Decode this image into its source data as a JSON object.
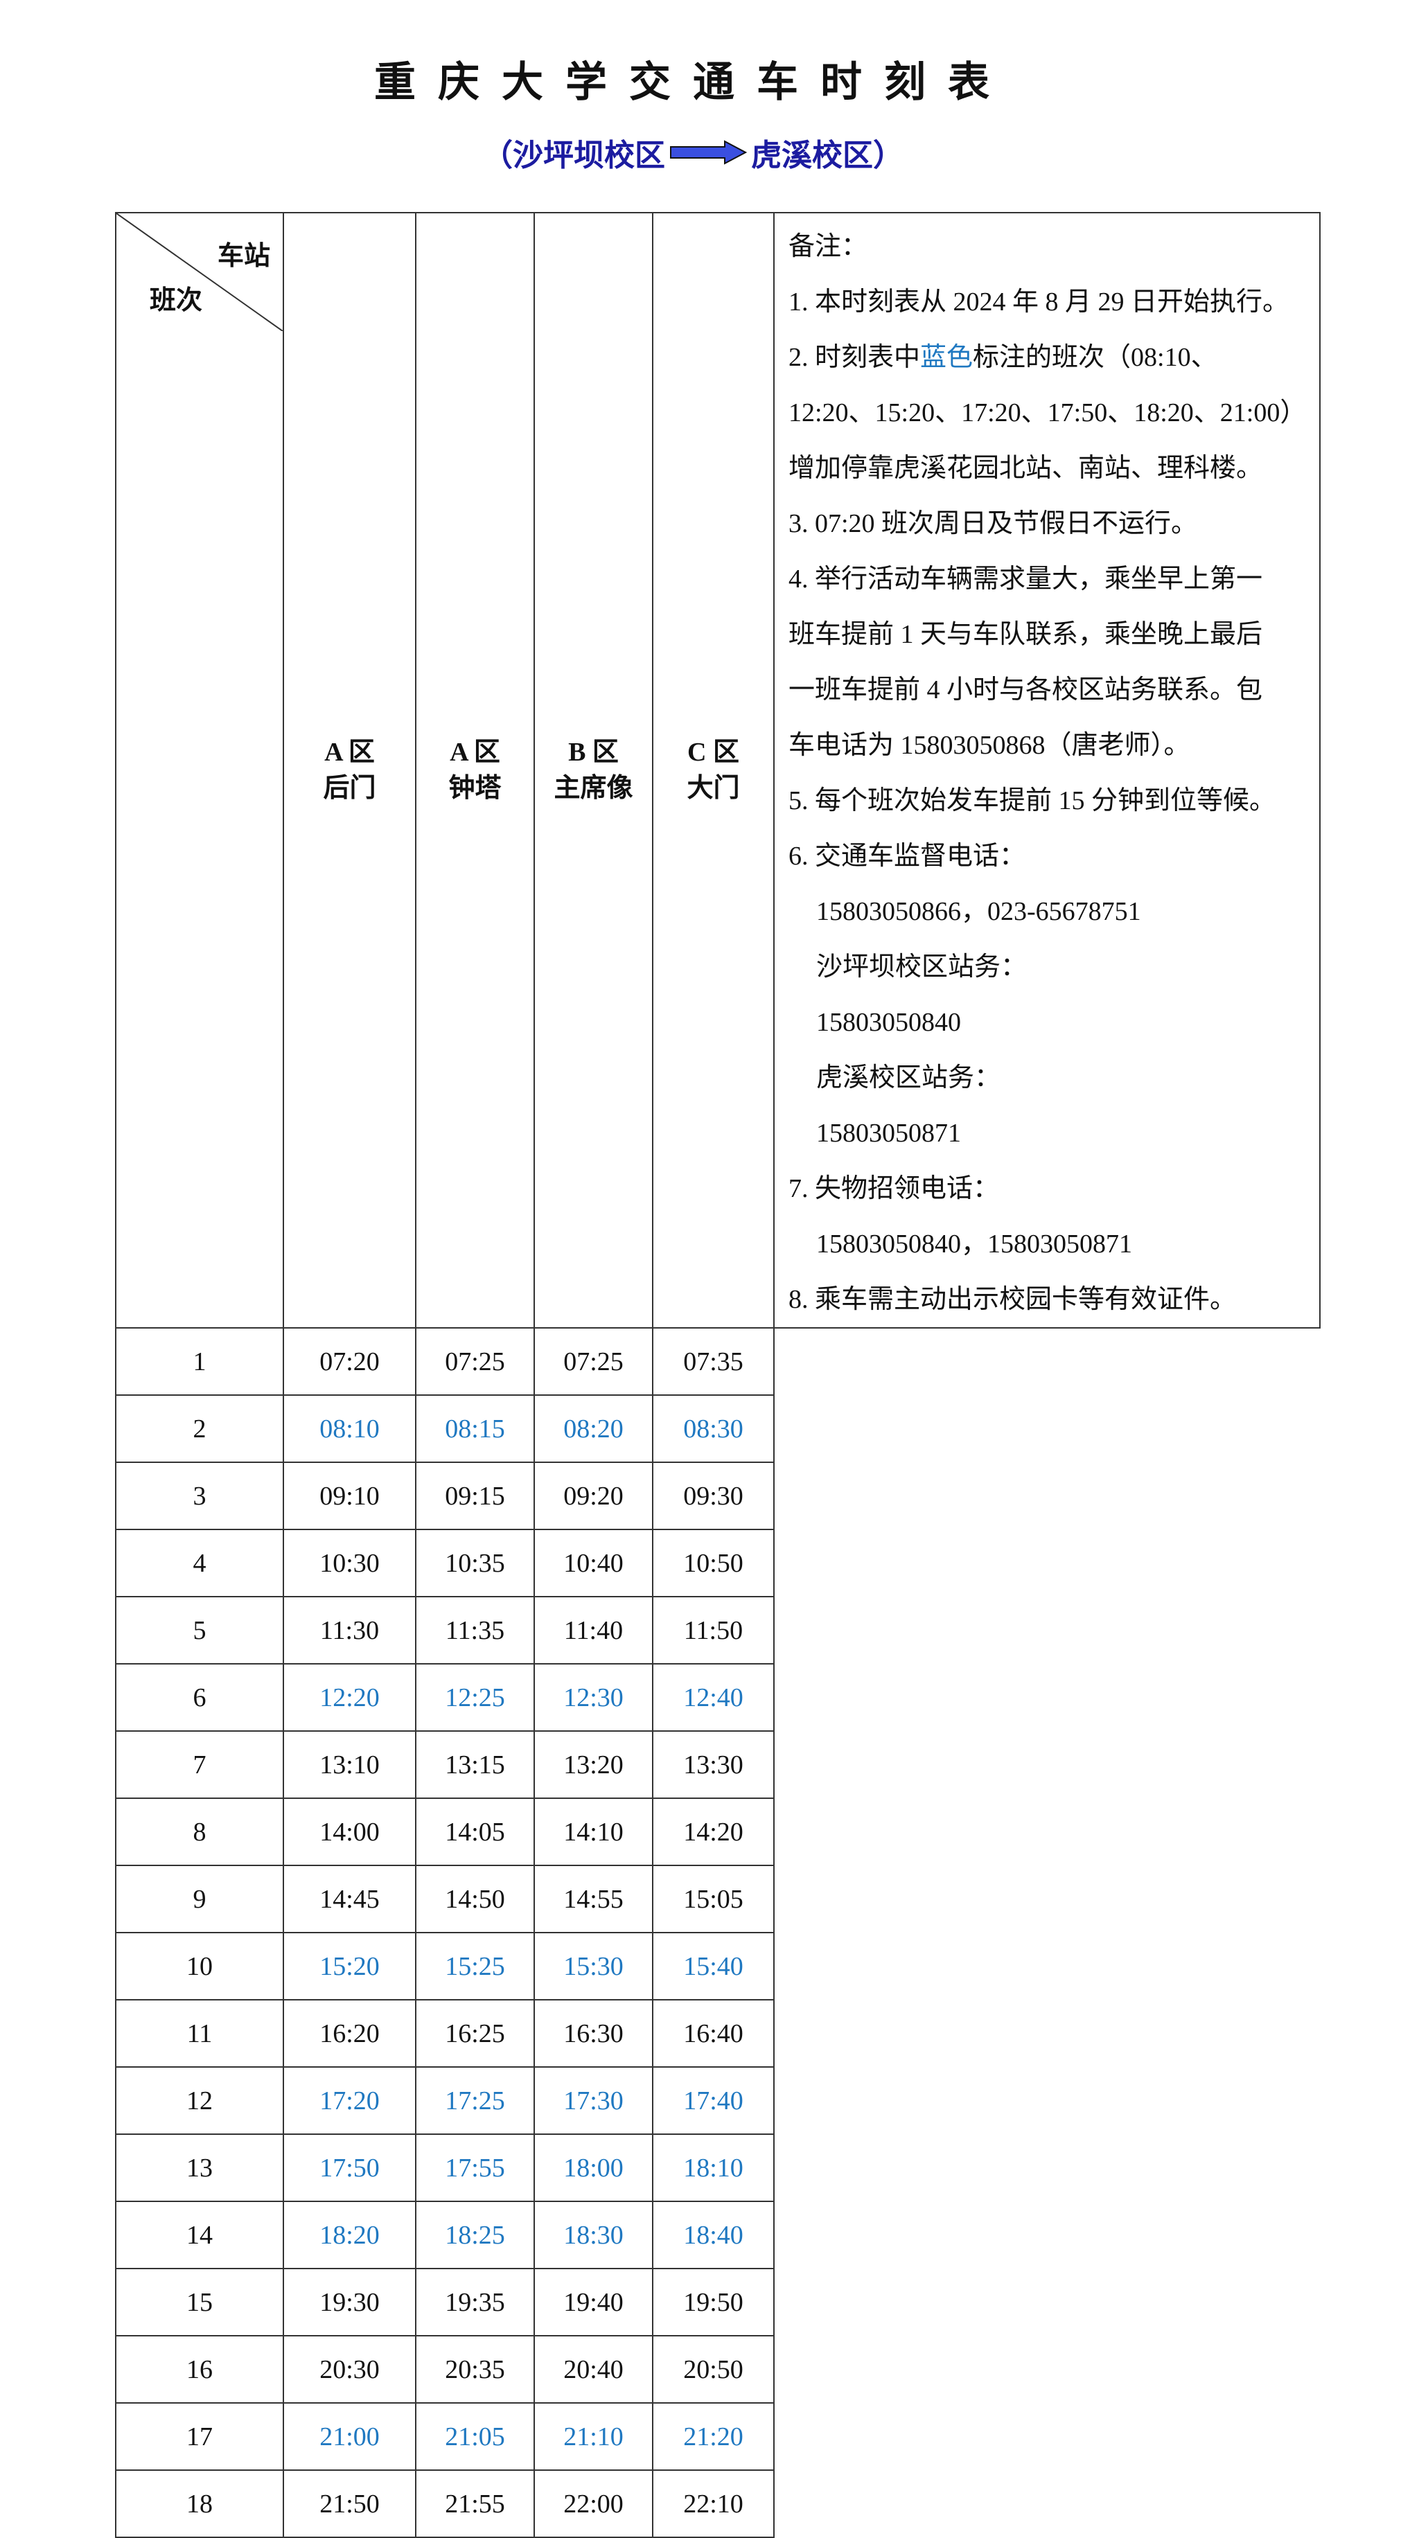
{
  "title": "重庆大学交通车时刻表",
  "subtitle": {
    "from": "（沙坪坝校区",
    "to": "虎溪校区）",
    "arrow_color": "#3a4fe0"
  },
  "table": {
    "corner_top": "车站",
    "corner_bottom": "班次",
    "columns": [
      {
        "line1": "A 区",
        "line2": "后门"
      },
      {
        "line1": "A 区",
        "line2": "钟塔"
      },
      {
        "line1": "B 区",
        "line2": "主席像"
      },
      {
        "line1": "C 区",
        "line2": "大门"
      }
    ],
    "highlight_color": "#1f78c1",
    "rows": [
      {
        "no": "1",
        "times": [
          "07:20",
          "07:25",
          "07:25",
          "07:35"
        ],
        "blue": false
      },
      {
        "no": "2",
        "times": [
          "08:10",
          "08:15",
          "08:20",
          "08:30"
        ],
        "blue": true
      },
      {
        "no": "3",
        "times": [
          "09:10",
          "09:15",
          "09:20",
          "09:30"
        ],
        "blue": false
      },
      {
        "no": "4",
        "times": [
          "10:30",
          "10:35",
          "10:40",
          "10:50"
        ],
        "blue": false
      },
      {
        "no": "5",
        "times": [
          "11:30",
          "11:35",
          "11:40",
          "11:50"
        ],
        "blue": false
      },
      {
        "no": "6",
        "times": [
          "12:20",
          "12:25",
          "12:30",
          "12:40"
        ],
        "blue": true
      },
      {
        "no": "7",
        "times": [
          "13:10",
          "13:15",
          "13:20",
          "13:30"
        ],
        "blue": false
      },
      {
        "no": "8",
        "times": [
          "14:00",
          "14:05",
          "14:10",
          "14:20"
        ],
        "blue": false
      },
      {
        "no": "9",
        "times": [
          "14:45",
          "14:50",
          "14:55",
          "15:05"
        ],
        "blue": false
      },
      {
        "no": "10",
        "times": [
          "15:20",
          "15:25",
          "15:30",
          "15:40"
        ],
        "blue": true
      },
      {
        "no": "11",
        "times": [
          "16:20",
          "16:25",
          "16:30",
          "16:40"
        ],
        "blue": false
      },
      {
        "no": "12",
        "times": [
          "17:20",
          "17:25",
          "17:30",
          "17:40"
        ],
        "blue": true
      },
      {
        "no": "13",
        "times": [
          "17:50",
          "17:55",
          "18:00",
          "18:10"
        ],
        "blue": true
      },
      {
        "no": "14",
        "times": [
          "18:20",
          "18:25",
          "18:30",
          "18:40"
        ],
        "blue": true
      },
      {
        "no": "15",
        "times": [
          "19:30",
          "19:35",
          "19:40",
          "19:50"
        ],
        "blue": false
      },
      {
        "no": "16",
        "times": [
          "20:30",
          "20:35",
          "20:40",
          "20:50"
        ],
        "blue": false
      },
      {
        "no": "17",
        "times": [
          "21:00",
          "21:05",
          "21:10",
          "21:20"
        ],
        "blue": true
      },
      {
        "no": "18",
        "times": [
          "21:50",
          "21:55",
          "22:00",
          "22:10"
        ],
        "blue": false
      }
    ]
  },
  "notes": {
    "heading": "备注：",
    "n1": "1. 本时刻表从 2024 年 8 月 29 日开始执行。",
    "n2_pre": "2. 时刻表中",
    "n2_blue": "蓝色",
    "n2_post": "标注的班次（08:10、",
    "n2_line2": "12:20、15:20、17:20、17:50、18:20、21:00）",
    "n2_line3": "增加停靠虎溪花园北站、南站、理科楼。",
    "n3": "3.  07:20 班次周日及节假日不运行。",
    "n4_line1": "4. 举行活动车辆需求量大，乘坐早上第一",
    "n4_line2": "班车提前 1 天与车队联系，乘坐晚上最后",
    "n4_line3": "一班车提前 4 小时与各校区站务联系。包",
    "n4_line4": "车电话为 15803050868（唐老师）。",
    "n5": "5. 每个班次始发车提前 15 分钟到位等候。",
    "n6": "6. 交通车监督电话：",
    "n6_phones": "15803050866，023-65678751",
    "n6_spb_label": "沙坪坝校区站务：",
    "n6_spb_phone": "15803050840",
    "n6_hx_label": "虎溪校区站务：",
    "n6_hx_phone": "15803050871",
    "n7": "7. 失物招领电话：",
    "n7_phones": "15803050840，15803050871",
    "n8": "8. 乘车需主动出示校园卡等有效证件。"
  }
}
